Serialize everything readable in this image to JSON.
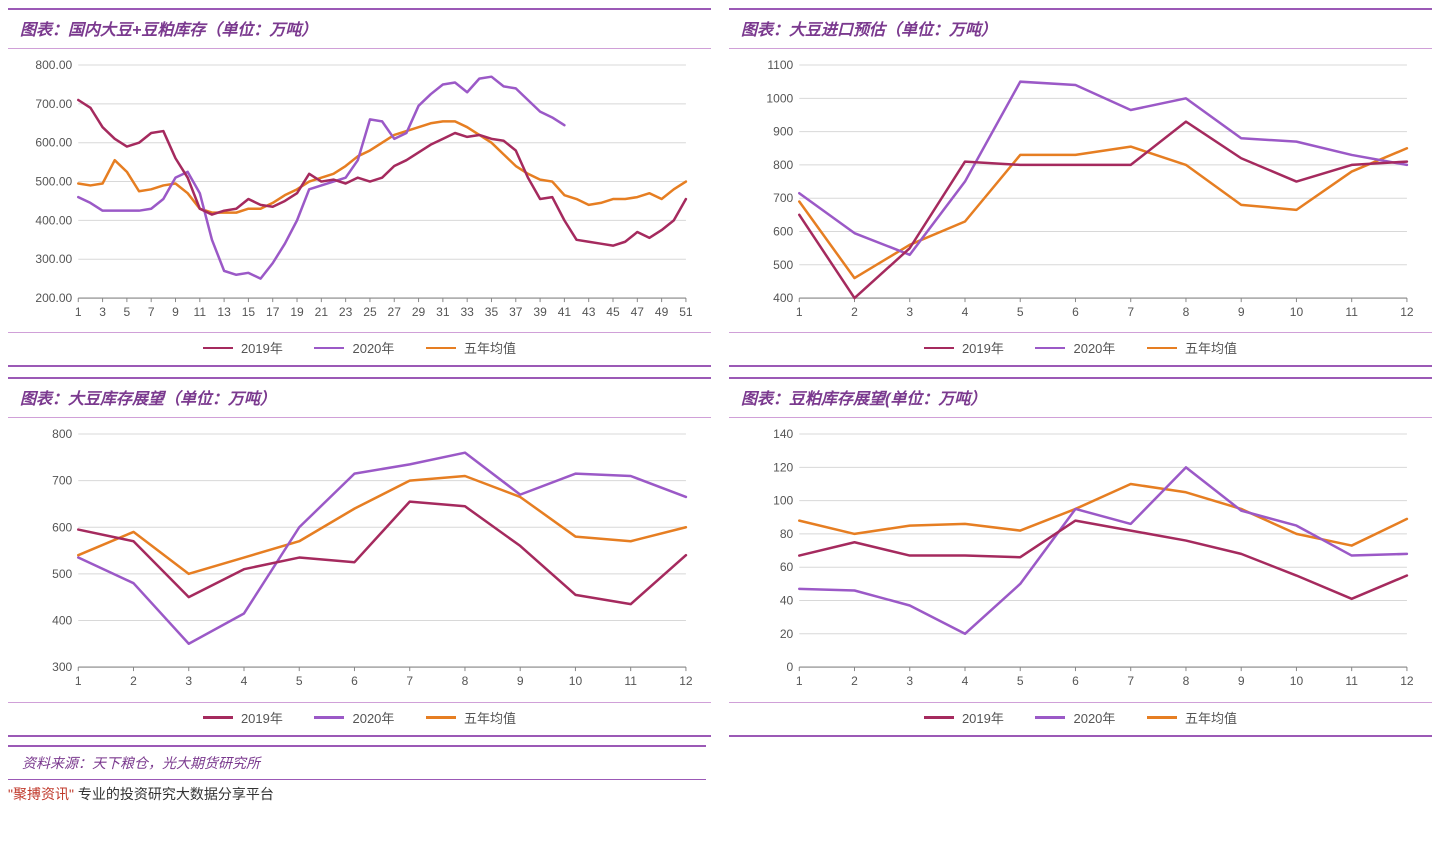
{
  "colors": {
    "series2019": "#a52a5e",
    "series2020": "#9b59c7",
    "series5yr": "#e67e22",
    "axis": "#888888",
    "grid": "#d8d8d8",
    "panelBorder": "#9b59b6"
  },
  "legendLabels": {
    "s2019": "2019年",
    "s2020": "2020年",
    "s5yr": "五年均值"
  },
  "lineWidth": 2.5,
  "fontSizes": {
    "title": 16,
    "axis": 12,
    "legend": 13,
    "source": 14
  },
  "charts": [
    {
      "id": "chart1",
      "title": "图表：国内大豆+豆粕库存（单位：万吨）",
      "xKind": "weeks51",
      "yTicks": [
        200,
        300,
        400,
        500,
        600,
        700,
        800
      ],
      "yTickFmt": "fixed2",
      "yMin": 200,
      "yMax": 800,
      "xTicks": [
        1,
        3,
        5,
        7,
        9,
        11,
        13,
        15,
        17,
        19,
        21,
        23,
        25,
        27,
        29,
        31,
        33,
        35,
        37,
        39,
        41,
        43,
        45,
        47,
        49,
        51
      ],
      "series": {
        "s2019": [
          710,
          690,
          640,
          610,
          590,
          600,
          625,
          630,
          560,
          510,
          430,
          415,
          425,
          430,
          455,
          440,
          435,
          450,
          470,
          520,
          500,
          505,
          495,
          510,
          500,
          510,
          540,
          555,
          575,
          595,
          610,
          625,
          615,
          620,
          610,
          605,
          580,
          510,
          455,
          460,
          400,
          350,
          345,
          340,
          335,
          345,
          370,
          355,
          375,
          400,
          455
        ],
        "s2020": [
          460,
          445,
          425,
          425,
          425,
          425,
          430,
          455,
          510,
          525,
          470,
          350,
          270,
          260,
          265,
          250,
          290,
          340,
          400,
          480,
          490,
          500,
          510,
          555,
          660,
          655,
          610,
          625,
          695,
          725,
          750,
          755,
          730,
          765,
          770,
          745,
          740,
          710,
          680,
          665,
          645,
          null,
          null,
          null,
          null,
          null,
          null,
          null,
          null,
          null,
          null
        ],
        "s5yr": [
          495,
          490,
          495,
          555,
          525,
          475,
          480,
          490,
          495,
          470,
          430,
          420,
          420,
          420,
          430,
          430,
          445,
          465,
          480,
          500,
          510,
          520,
          540,
          565,
          580,
          600,
          620,
          630,
          640,
          650,
          655,
          655,
          640,
          620,
          600,
          570,
          540,
          520,
          505,
          500,
          465,
          455,
          440,
          445,
          455,
          455,
          460,
          470,
          455,
          480,
          500
        ]
      }
    },
    {
      "id": "chart2",
      "title": "图表：大豆进口预估（单位：万吨）",
      "xKind": "months12",
      "yTicks": [
        400,
        500,
        600,
        700,
        800,
        900,
        1000,
        1100
      ],
      "yTickFmt": "int",
      "yMin": 400,
      "yMax": 1100,
      "xTicks": [
        1,
        2,
        3,
        4,
        5,
        6,
        7,
        8,
        9,
        10,
        11,
        12
      ],
      "series": {
        "s2019": [
          650,
          400,
          550,
          810,
          800,
          800,
          800,
          930,
          820,
          750,
          800,
          810
        ],
        "s2020": [
          715,
          595,
          530,
          750,
          1050,
          1040,
          965,
          1000,
          880,
          870,
          830,
          800
        ],
        "s5yr": [
          690,
          460,
          560,
          630,
          830,
          830,
          855,
          800,
          680,
          665,
          780,
          850
        ]
      }
    },
    {
      "id": "chart3",
      "title": "图表：大豆库存展望（单位：万吨）",
      "xKind": "months12",
      "yTicks": [
        300,
        400,
        500,
        600,
        700,
        800
      ],
      "yTickFmt": "int",
      "yMin": 300,
      "yMax": 800,
      "xTicks": [
        1,
        2,
        3,
        4,
        5,
        6,
        7,
        8,
        9,
        10,
        11,
        12
      ],
      "series": {
        "s2019": [
          595,
          570,
          450,
          510,
          535,
          525,
          655,
          645,
          560,
          455,
          435,
          540
        ],
        "s2020": [
          535,
          480,
          350,
          415,
          600,
          715,
          735,
          760,
          670,
          715,
          710,
          665
        ],
        "s5yr": [
          540,
          590,
          500,
          535,
          570,
          640,
          700,
          710,
          665,
          580,
          570,
          600
        ]
      }
    },
    {
      "id": "chart4",
      "title": "图表：豆粕库存展望(单位：万吨）",
      "xKind": "months12",
      "yTicks": [
        0,
        20,
        40,
        60,
        80,
        100,
        120,
        140
      ],
      "yTickFmt": "int",
      "yMin": 0,
      "yMax": 140,
      "xTicks": [
        1,
        2,
        3,
        4,
        5,
        6,
        7,
        8,
        9,
        10,
        11,
        12
      ],
      "series": {
        "s2019": [
          67,
          75,
          67,
          67,
          66,
          88,
          82,
          76,
          68,
          55,
          41,
          55
        ],
        "s2020": [
          47,
          46,
          37,
          20,
          50,
          95,
          86,
          120,
          94,
          85,
          67,
          68
        ],
        "s5yr": [
          88,
          80,
          85,
          86,
          82,
          95,
          110,
          105,
          95,
          80,
          73,
          89
        ]
      }
    }
  ],
  "sourceNote": "资料来源：天下粮仓，光大期货研究所",
  "footer": {
    "quoted": "\"聚搏资讯\"",
    "rest": " 专业的投资研究大数据分享平台"
  }
}
